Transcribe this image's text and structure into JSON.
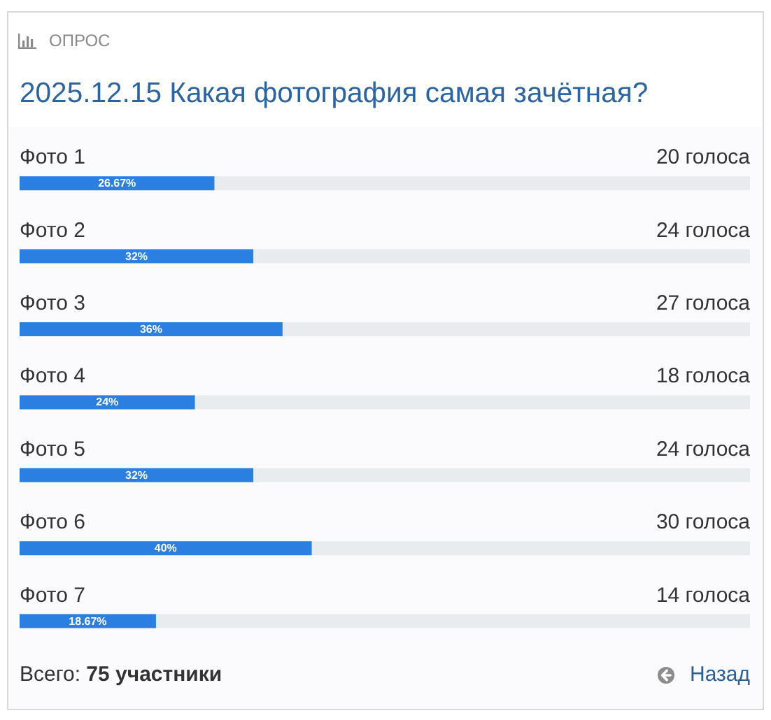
{
  "chart_data": {
    "type": "bar",
    "orientation": "horizontal",
    "title": "2025.12.15 Какая фотография самая зачётная?",
    "categories": [
      "Фото 1",
      "Фото 2",
      "Фото 3",
      "Фото 4",
      "Фото 5",
      "Фото 6",
      "Фото 7"
    ],
    "values": [
      26.67,
      32,
      36,
      24,
      32,
      40,
      18.67
    ],
    "value_labels": [
      "26.67%",
      "32%",
      "36%",
      "24%",
      "32%",
      "40%",
      "18.67%"
    ],
    "color": "#2a7fe0",
    "xlim": [
      0,
      100
    ],
    "tick_labels": "y",
    "annotations": [
      "ОПРОС",
      "20 голоса",
      "24 голоса",
      "27 голоса",
      "18 голоса",
      "24 голоса",
      "30 голоса",
      "14 голоса",
      "Всего:",
      "75 участники",
      "Назад"
    ]
  }
}
